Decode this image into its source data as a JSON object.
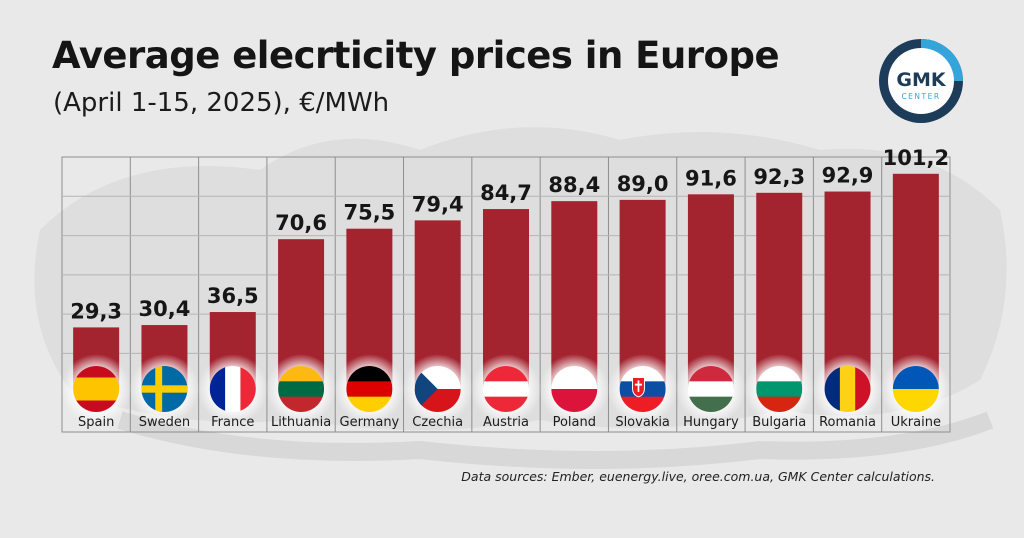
{
  "header": {
    "title": "Average elecrticity prices in Europe",
    "subtitle": "(April 1-15, 2025), €/MWh"
  },
  "logo": {
    "line1": "GMK",
    "line2": "CENTER"
  },
  "source": "Data sources: Ember, euenergy.live, oree.com.ua, GMK Center calculations.",
  "colors": {
    "bar": "#a3232f",
    "grid": "#8e8e8e",
    "logo_dark": "#1d3c5a",
    "logo_light": "#35a4db"
  },
  "chart_data": {
    "type": "bar",
    "title": "Average elecrticity prices in Europe",
    "subtitle": "(April 1-15, 2025), €/MWh",
    "categories": [
      "Spain",
      "Sweden",
      "France",
      "Lithuania",
      "Germany",
      "Czechia",
      "Austria",
      "Poland",
      "Slovakia",
      "Hungary",
      "Bulgaria",
      "Romania",
      "Ukraine"
    ],
    "values": [
      29.3,
      30.4,
      36.5,
      70.6,
      75.5,
      79.4,
      84.7,
      88.4,
      89.0,
      91.6,
      92.3,
      92.9,
      101.2
    ],
    "value_labels": [
      "29,3",
      "30,4",
      "36,5",
      "70,6",
      "75,5",
      "79,4",
      "84,7",
      "88,4",
      "89,0",
      "91,6",
      "92,3",
      "92,9",
      "101,2"
    ],
    "flag_icons": [
      "spain-flag-icon",
      "sweden-flag-icon",
      "france-flag-icon",
      "lithuania-flag-icon",
      "germany-flag-icon",
      "czechia-flag-icon",
      "austria-flag-icon",
      "poland-flag-icon",
      "slovakia-flag-icon",
      "hungary-flag-icon",
      "bulgaria-flag-icon",
      "romania-flag-icon",
      "ukraine-flag-icon"
    ],
    "ylim": [
      0,
      110
    ],
    "grid": true,
    "legend": "none"
  }
}
